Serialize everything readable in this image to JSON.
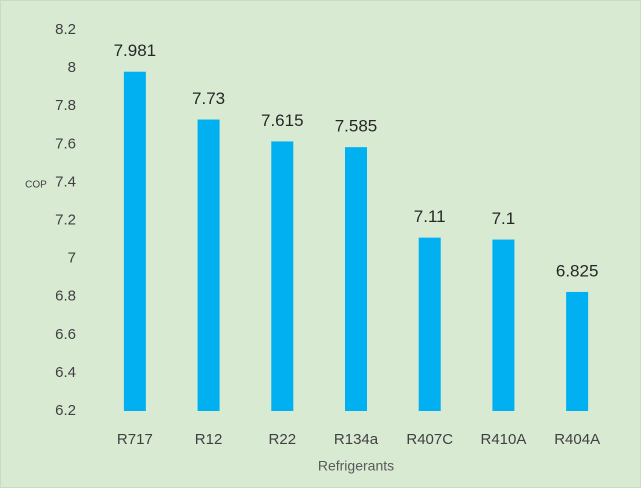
{
  "chart_data": {
    "type": "bar",
    "x_label": "Refrigerants",
    "y_label": "COP",
    "categories": [
      "R717",
      "R12",
      "R22",
      "R134a",
      "R407C",
      "R410A",
      "R404A"
    ],
    "values": [
      7.981,
      7.73,
      7.615,
      7.585,
      7.11,
      7.1,
      6.825
    ],
    "color": "#00b0f0",
    "ylim": [
      6.2,
      8.2
    ],
    "yticks": [
      6.2,
      6.4,
      6.6,
      6.8,
      7,
      7.2,
      7.4,
      7.6,
      7.8,
      8,
      8.2
    ],
    "grid": false,
    "data_labels": true
  }
}
